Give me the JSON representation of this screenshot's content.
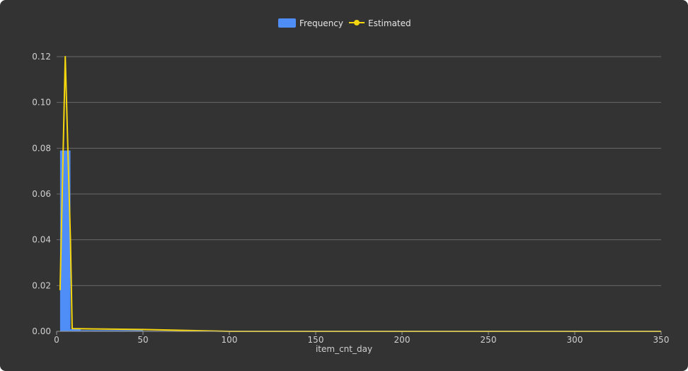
{
  "chart_data": {
    "type": "bar",
    "title": "",
    "xlabel": "item_cnt_day",
    "ylabel": "",
    "xlim": [
      0,
      350
    ],
    "ylim": [
      0,
      0.12
    ],
    "x_ticks": [
      "0",
      "50",
      "100",
      "150",
      "200",
      "250",
      "300",
      "350"
    ],
    "y_ticks": [
      "0.00",
      "0.02",
      "0.04",
      "0.06",
      "0.08",
      "0.10",
      "0.12"
    ],
    "grid": true,
    "legend_position": "top-center",
    "series": [
      {
        "name": "Frequency",
        "type": "bar",
        "color": "#4f8ef7",
        "bins": [
          {
            "x0": 2,
            "x1": 8,
            "value": 0.079
          },
          {
            "x0": 8,
            "x1": 14,
            "value": 0.001
          },
          {
            "x0": 14,
            "x1": 50,
            "value": 0.0005
          },
          {
            "x0": 50,
            "x1": 100,
            "value": 0.0002
          }
        ]
      },
      {
        "name": "Estimated",
        "type": "line",
        "color": "#f5d60e",
        "x": [
          2,
          5,
          8,
          9,
          50,
          100,
          350
        ],
        "y": [
          0.018,
          0.12,
          0.04,
          0.0012,
          0.0008,
          0.0,
          0.0
        ]
      }
    ]
  }
}
